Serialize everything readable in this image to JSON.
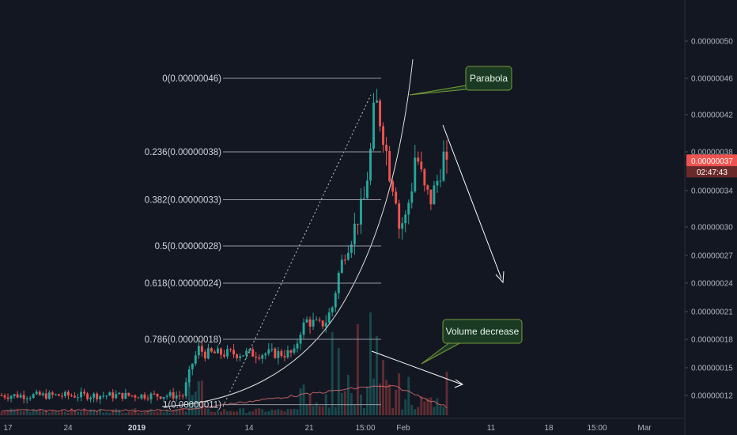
{
  "chart_data": {
    "type": "candlestick",
    "price_axis": {
      "ticks": [
        "0.00000050",
        "0.00000046",
        "0.00000042",
        "0.00000038",
        "0.00000034",
        "0.00000030",
        "0.00000027",
        "0.00000024",
        "0.00000021",
        "0.00000018",
        "0.00000015",
        "0.00000012"
      ],
      "current_price": "0.00000037",
      "countdown": "02:47:43"
    },
    "time_axis": {
      "ticks": [
        "17",
        "24",
        "2019",
        "7",
        "14",
        "21",
        "15:00",
        "Feb",
        "11",
        "18",
        "15:00",
        "Mar"
      ]
    },
    "fib_levels": [
      {
        "label": "0(0.00000046)",
        "price": 4.6e-07
      },
      {
        "label": "0.236(0.00000038)",
        "price": 3.8e-07
      },
      {
        "label": "0.382(0.00000033)",
        "price": 3.3e-07
      },
      {
        "label": "0.5(0.00000028)",
        "price": 2.8e-07
      },
      {
        "label": "0.618(0.00000024)",
        "price": 2.4e-07
      },
      {
        "label": "0.786(0.00000018)",
        "price": 1.8e-07
      },
      {
        "label": "1(0.00000011)",
        "price": 1.1e-07
      }
    ],
    "annotations": [
      {
        "label": "Parabola"
      },
      {
        "label": "Volume decrease"
      }
    ],
    "colors": {
      "background": "#131722",
      "up": "#26a69a",
      "down": "#ef5350",
      "price_label": "#ef5350",
      "callout_fill": "#1b3a24",
      "callout_border": "#7a9a3a",
      "arrow": "#ffffff"
    }
  }
}
